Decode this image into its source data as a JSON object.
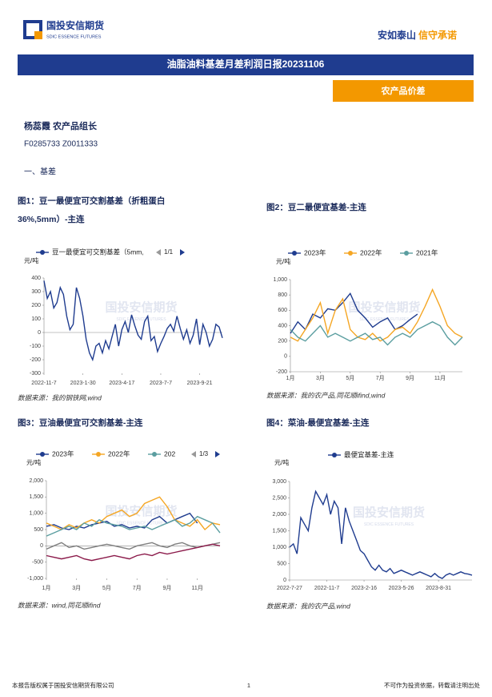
{
  "header": {
    "logo_cn": "国投安信期货",
    "logo_en": "SDIC ESSENCE FUTURES",
    "slogan_a": "安如泰山",
    "slogan_b": "信守承诺"
  },
  "report_title": "油脂油料基差月差利润日报20231106",
  "section_tag": "农产品价差",
  "author": {
    "name_role": "杨蕊霞  农产品组长",
    "license": "F0285733  Z0011333"
  },
  "section_heading": "一、基差",
  "watermark": "国投安信期货",
  "watermark_sub": "SDIC ESSENCE FUTURES",
  "chart_data": [
    {
      "type": "line",
      "title": [
        "图1：豆一最便宜可交割基差（折粗蛋白",
        "36%,5mm）-主连"
      ],
      "y_unit": "元/吨",
      "legend_page": "1/1",
      "categories": [
        "2022-11-7",
        null,
        null,
        null,
        null,
        null,
        null,
        null,
        null,
        null,
        null,
        null,
        "2023-1-30",
        null,
        null,
        null,
        null,
        null,
        null,
        null,
        null,
        null,
        null,
        null,
        "2023-4-17",
        null,
        null,
        null,
        null,
        null,
        null,
        null,
        null,
        null,
        null,
        null,
        "2023-7-7",
        null,
        null,
        null,
        null,
        null,
        null,
        null,
        null,
        null,
        null,
        null,
        "2023-9-21",
        null,
        null,
        null,
        null,
        null,
        null,
        null
      ],
      "series": [
        {
          "name": "豆一最便宜可交割基差（5mm,",
          "color": "#1f3c8f",
          "values": [
            380,
            250,
            300,
            180,
            220,
            330,
            280,
            120,
            20,
            60,
            330,
            250,
            120,
            -50,
            -150,
            -200,
            -100,
            -80,
            -150,
            -60,
            -120,
            -30,
            60,
            -100,
            20,
            80,
            0,
            130,
            50,
            -20,
            -50,
            80,
            120,
            -60,
            -30,
            -140,
            -80,
            -30,
            30,
            60,
            10,
            120,
            30,
            -50,
            20,
            -80,
            -20,
            100,
            -90,
            60,
            0,
            -100,
            -50,
            60,
            40,
            -40
          ]
        }
      ],
      "ylim": [
        -300,
        400
      ],
      "yticks": [
        -300,
        -200,
        -100,
        0,
        100,
        200,
        300,
        400
      ],
      "source": "数据来源：我的钢铁网,wind"
    },
    {
      "type": "line",
      "title": "图2：豆二最便宜基差-主连",
      "y_unit": "元/吨",
      "categories": [
        "1月",
        null,
        null,
        null,
        "3月",
        null,
        null,
        null,
        "5月",
        null,
        null,
        null,
        "7月",
        null,
        null,
        null,
        "9月",
        null,
        null,
        null,
        "11月",
        null,
        null,
        null
      ],
      "series": [
        {
          "name": "2023年",
          "color": "#1f3c8f",
          "values": [
            300,
            450,
            350,
            550,
            500,
            620,
            600,
            700,
            820,
            600,
            500,
            380,
            450,
            500,
            350,
            400,
            480,
            550,
            null,
            null,
            null,
            null,
            null,
            null
          ]
        },
        {
          "name": "2022年",
          "color": "#f5a623",
          "values": [
            250,
            200,
            350,
            500,
            700,
            300,
            600,
            750,
            350,
            250,
            220,
            300,
            200,
            250,
            350,
            380,
            300,
            450,
            650,
            870,
            650,
            400,
            300,
            250
          ]
        },
        {
          "name": "2021年",
          "color": "#5b9ea0",
          "values": [
            350,
            250,
            200,
            300,
            400,
            250,
            300,
            250,
            200,
            250,
            300,
            220,
            250,
            150,
            250,
            300,
            250,
            350,
            400,
            450,
            400,
            250,
            150,
            250
          ]
        }
      ],
      "ylim": [
        -200,
        1000
      ],
      "yticks": [
        -200,
        0,
        200,
        400,
        600,
        800,
        {
          "value": 1000,
          "label": "1,000"
        }
      ],
      "source": "数据来源：我的农产品,同花顺ifind,wind"
    },
    {
      "type": "line",
      "title": "图3：豆油最便宜可交割基差-主连",
      "y_unit": "元/吨",
      "legend_page": "1/3",
      "categories": [
        "1月",
        null,
        null,
        null,
        "3月",
        null,
        null,
        null,
        "5月",
        null,
        null,
        null,
        "7月",
        null,
        null,
        null,
        "9月",
        null,
        null,
        null,
        "11月",
        null,
        null,
        null
      ],
      "series": [
        {
          "name": "2023年",
          "color": "#1f3c8f",
          "values": [
            600,
            650,
            550,
            500,
            600,
            550,
            650,
            700,
            750,
            600,
            650,
            550,
            600,
            550,
            800,
            900,
            700,
            800,
            900,
            1000,
            700,
            null,
            null,
            null
          ]
        },
        {
          "name": "2022年",
          "color": "#f5a623",
          "values": [
            700,
            600,
            500,
            650,
            550,
            700,
            800,
            700,
            900,
            1000,
            1100,
            900,
            1000,
            1300,
            1400,
            1500,
            1200,
            800,
            700,
            600,
            800,
            500,
            700,
            650
          ]
        },
        {
          "name": "202",
          "color": "#5b9ea0",
          "values": [
            300,
            400,
            500,
            600,
            500,
            700,
            600,
            800,
            700,
            650,
            600,
            500,
            550,
            600,
            500,
            600,
            700,
            800,
            600,
            700,
            900,
            800,
            700,
            400
          ]
        },
        {
          "color": "#7f7f7f",
          "values": [
            -100,
            0,
            100,
            -50,
            0,
            -100,
            -50,
            0,
            50,
            0,
            -50,
            -100,
            0,
            50,
            100,
            0,
            -50,
            50,
            100,
            0,
            -50,
            0,
            50,
            100
          ]
        },
        {
          "color": "#8b1a4a",
          "values": [
            -300,
            -350,
            -400,
            -350,
            -300,
            -400,
            -450,
            -400,
            -350,
            -300,
            -350,
            -400,
            -300,
            -250,
            -300,
            -200,
            -250,
            -200,
            -150,
            -100,
            -50,
            0,
            50,
            0
          ]
        }
      ],
      "ylim": [
        -1000,
        2000
      ],
      "yticks": [
        {
          "value": -1000,
          "label": "-1,000"
        },
        -500,
        0,
        500,
        {
          "value": 1000,
          "label": "1,000"
        },
        {
          "value": 1500,
          "label": "1,500"
        },
        {
          "value": 2000,
          "label": "2,000"
        }
      ],
      "source": "数据来源：wind,同花顺ifind"
    },
    {
      "type": "line",
      "title": "图4：菜油-最便宜基差-主连",
      "y_unit": "元/吨",
      "categories": [
        "2022-7-27",
        null,
        null,
        null,
        null,
        null,
        null,
        null,
        null,
        null,
        "2022-11-7",
        null,
        null,
        null,
        null,
        null,
        null,
        null,
        null,
        null,
        "2023-2-16",
        null,
        null,
        null,
        null,
        null,
        null,
        null,
        null,
        null,
        "2023-5-26",
        null,
        null,
        null,
        null,
        null,
        null,
        null,
        null,
        null,
        "2023-8-31",
        null,
        null,
        null,
        null,
        null,
        null,
        null,
        null,
        null
      ],
      "series": [
        {
          "name": "最便宜基差-主连",
          "color": "#1f3c8f",
          "values": [
            1000,
            1100,
            800,
            1900,
            1700,
            1500,
            2200,
            2700,
            2500,
            2300,
            2600,
            2000,
            2400,
            2200,
            1100,
            2200,
            1800,
            1500,
            1200,
            900,
            800,
            600,
            400,
            300,
            450,
            300,
            250,
            350,
            200,
            250,
            300,
            250,
            200,
            150,
            200,
            250,
            200,
            150,
            100,
            200,
            100,
            50,
            150,
            200,
            150,
            200,
            250,
            200,
            180,
            150
          ]
        }
      ],
      "ylim": [
        0,
        3000
      ],
      "yticks": [
        0,
        500,
        {
          "value": 1000,
          "label": "1,000"
        },
        {
          "value": 1500,
          "label": "1,500"
        },
        {
          "value": 2000,
          "label": "2,000"
        },
        {
          "value": 2500,
          "label": "2,500"
        },
        {
          "value": 3000,
          "label": "3,000"
        }
      ],
      "source": "数据来源：我的农产品,wind"
    }
  ],
  "footer": {
    "copyright": "本报告版权属于国投安信期货有限公司",
    "page_number": "1",
    "disclaimer": "不可作为投资依据，转载请注明出处"
  }
}
